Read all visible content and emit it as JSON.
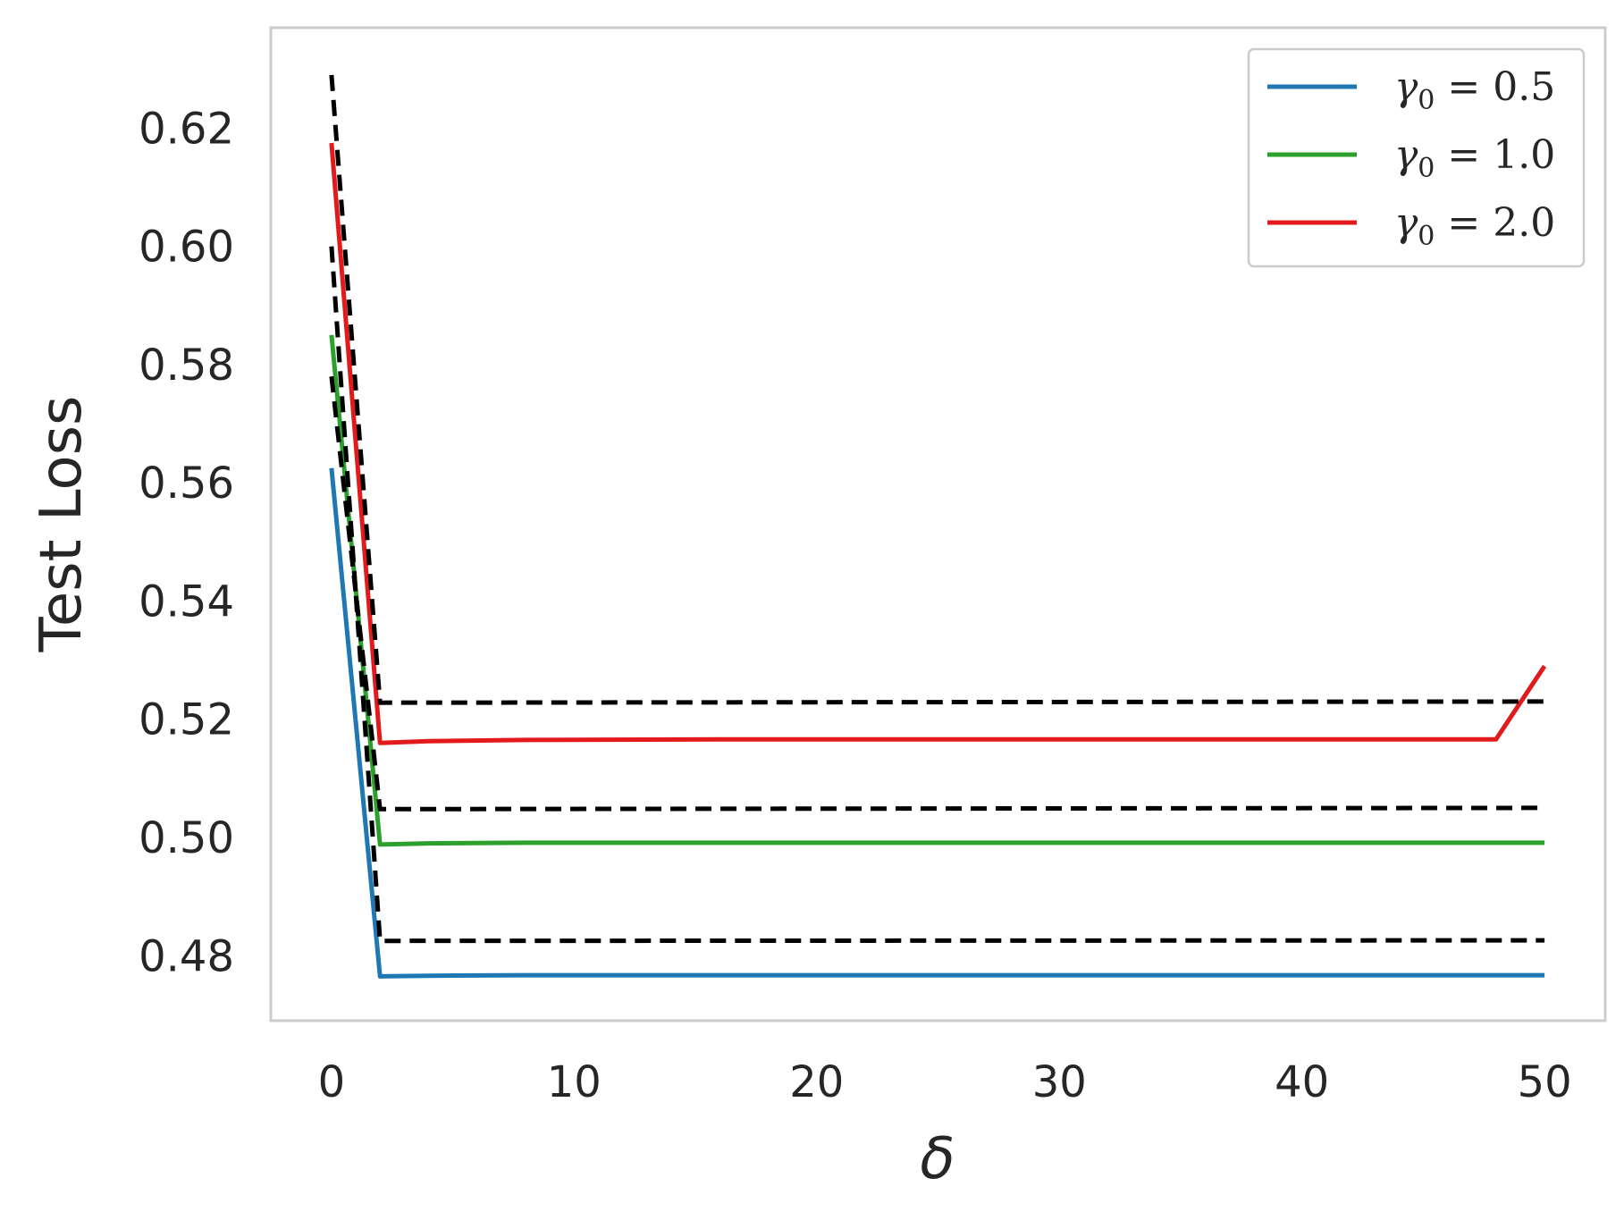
{
  "chart_data": {
    "type": "line",
    "xlabel": "δ",
    "ylabel": "Test Loss",
    "xlim": [
      -2.5,
      52.5
    ],
    "ylim": [
      0.469,
      0.637
    ],
    "xticks": [
      0,
      10,
      20,
      30,
      40,
      50
    ],
    "xtick_labels": [
      "0",
      "10",
      "20",
      "30",
      "40",
      "50"
    ],
    "yticks": [
      0.48,
      0.5,
      0.52,
      0.54,
      0.56,
      0.58,
      0.6,
      0.62
    ],
    "ytick_labels": [
      "0.48",
      "0.50",
      "0.52",
      "0.54",
      "0.56",
      "0.58",
      "0.60",
      "0.62"
    ],
    "grid": false,
    "legend_position": "upper right",
    "series": [
      {
        "name": "γ0 = 0.5",
        "legend_label": {
          "symbol": "γ",
          "sub": "0",
          "rest": " = 0.5"
        },
        "color": "#1f77b4",
        "style": "solid",
        "x": [
          0,
          2,
          4,
          8,
          16,
          32,
          50
        ],
        "y": [
          0.5625,
          0.4765,
          0.4766,
          0.4767,
          0.4767,
          0.4767,
          0.4767
        ]
      },
      {
        "name": "γ0 = 1.0",
        "legend_label": {
          "symbol": "γ",
          "sub": "0",
          "rest": " = 1.0"
        },
        "color": "#2ca02c",
        "style": "solid",
        "x": [
          0,
          2,
          4,
          8,
          16,
          32,
          50
        ],
        "y": [
          0.585,
          0.4988,
          0.499,
          0.4991,
          0.4991,
          0.4991,
          0.4991
        ]
      },
      {
        "name": "γ0 = 2.0",
        "legend_label": {
          "symbol": "γ",
          "sub": "0",
          "rest": " = 2.0"
        },
        "color": "#e31a1c",
        "style": "solid",
        "x": [
          0,
          2,
          4,
          8,
          16,
          32,
          48,
          50
        ],
        "y": [
          0.6175,
          0.516,
          0.5163,
          0.5165,
          0.5166,
          0.5166,
          0.5166,
          0.529
        ]
      },
      {
        "color": "#000000",
        "style": "dashed",
        "x": [
          0,
          2,
          50
        ],
        "y": [
          0.6,
          0.4825,
          0.4826
        ]
      },
      {
        "color": "#000000",
        "style": "dashed",
        "x": [
          0,
          2,
          50
        ],
        "y": [
          0.578,
          0.5048,
          0.505
        ]
      },
      {
        "color": "#000000",
        "style": "dashed",
        "x": [
          0,
          2,
          50
        ],
        "y": [
          0.629,
          0.5228,
          0.523
        ]
      }
    ]
  }
}
